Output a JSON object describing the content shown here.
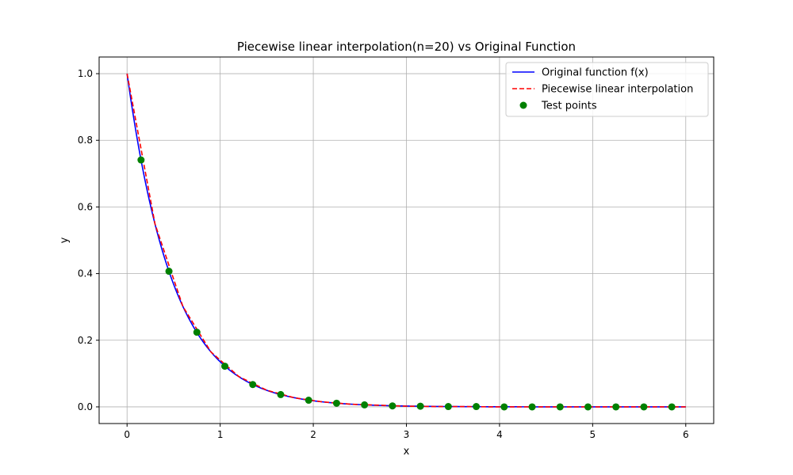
{
  "chart_data": {
    "type": "line",
    "title": "Piecewise linear interpolation(n=20) vs Original Function",
    "xlabel": "x",
    "ylabel": "y",
    "xlim": [
      -0.3,
      6.3
    ],
    "ylim": [
      -0.05,
      1.05
    ],
    "xticks": [
      0,
      1,
      2,
      3,
      4,
      5,
      6
    ],
    "xtick_labels": [
      "0",
      "1",
      "2",
      "3",
      "4",
      "5",
      "6"
    ],
    "yticks": [
      0.0,
      0.2,
      0.4,
      0.6,
      0.8,
      1.0
    ],
    "ytick_labels": [
      "0.0",
      "0.2",
      "0.4",
      "0.6",
      "0.8",
      "1.0"
    ],
    "grid": true,
    "legend_position": "top-right",
    "colors": {
      "original": "#0000ff",
      "interpolation": "#ff0000",
      "test_points": "#008000",
      "grid": "#b0b0b0"
    },
    "series": [
      {
        "name": "Original function f(x)",
        "style": "solid",
        "function": "exp(-2x)",
        "x": [
          0,
          0.05,
          0.1,
          0.15,
          0.2,
          0.25,
          0.3,
          0.35,
          0.4,
          0.45,
          0.5,
          0.6,
          0.7,
          0.8,
          0.9,
          1.0,
          1.2,
          1.4,
          1.6,
          1.8,
          2.0,
          2.3,
          2.6,
          3.0,
          3.5,
          4.0,
          5.0,
          6.0
        ],
        "y": [
          1.0,
          0.905,
          0.819,
          0.741,
          0.67,
          0.607,
          0.549,
          0.497,
          0.449,
          0.407,
          0.368,
          0.301,
          0.247,
          0.202,
          0.165,
          0.135,
          0.091,
          0.061,
          0.041,
          0.027,
          0.018,
          0.01,
          0.006,
          0.002,
          0.001,
          0.0,
          0.0,
          0.0
        ]
      },
      {
        "name": "Piecewise linear interpolation",
        "style": "dashed",
        "x": [
          0,
          0.3,
          0.6,
          0.9,
          1.2,
          1.5,
          1.8,
          2.1,
          2.4,
          2.7,
          3.0,
          3.3,
          3.6,
          3.9,
          4.2,
          4.5,
          4.8,
          5.1,
          5.4,
          5.7,
          6.0
        ],
        "y": [
          1.0,
          0.549,
          0.301,
          0.165,
          0.091,
          0.05,
          0.027,
          0.015,
          0.008,
          0.005,
          0.002,
          0.001,
          0.001,
          0.0,
          0.0,
          0.0,
          0.0,
          0.0,
          0.0,
          0.0,
          0.0
        ]
      },
      {
        "name": "Test points",
        "style": "scatter",
        "x": [
          0.15,
          0.45,
          0.75,
          1.05,
          1.35,
          1.65,
          1.95,
          2.25,
          2.55,
          2.85,
          3.15,
          3.45,
          3.75,
          4.05,
          4.35,
          4.65,
          4.95,
          5.25,
          5.55,
          5.85
        ],
        "y": [
          0.741,
          0.407,
          0.224,
          0.122,
          0.067,
          0.037,
          0.02,
          0.011,
          0.006,
          0.003,
          0.002,
          0.001,
          0.001,
          0.0,
          0.0,
          0.0,
          0.0,
          0.0,
          0.0,
          0.0
        ]
      }
    ]
  }
}
